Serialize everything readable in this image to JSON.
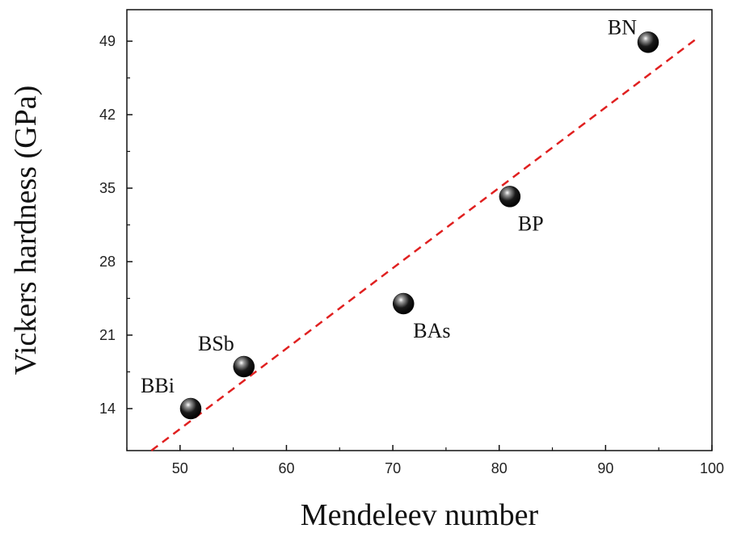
{
  "chart_data": {
    "type": "scatter",
    "title": "",
    "xlabel": "Mendeleev number",
    "ylabel": "Vickers hardness (GPa)",
    "xlim": [
      45,
      100
    ],
    "ylim": [
      10,
      52
    ],
    "xticks": [
      50,
      60,
      70,
      80,
      90,
      100
    ],
    "yticks": [
      14,
      21,
      28,
      35,
      42,
      49
    ],
    "grid": false,
    "legend": "none",
    "series": [
      {
        "points": [
          {
            "label": "BBi",
            "x": 51,
            "y": 14.0
          },
          {
            "label": "BSb",
            "x": 56,
            "y": 18.0
          },
          {
            "label": "BAs",
            "x": 71,
            "y": 24.0
          },
          {
            "label": "BP",
            "x": 81,
            "y": 34.2
          },
          {
            "label": "BN",
            "x": 94,
            "y": 48.9
          }
        ],
        "marker_color": "#111111"
      }
    ],
    "fit_line": {
      "style": "dashed",
      "color": "#e02020",
      "x": [
        47.3,
        98.5
      ],
      "y": [
        10.0,
        49.2
      ]
    }
  }
}
